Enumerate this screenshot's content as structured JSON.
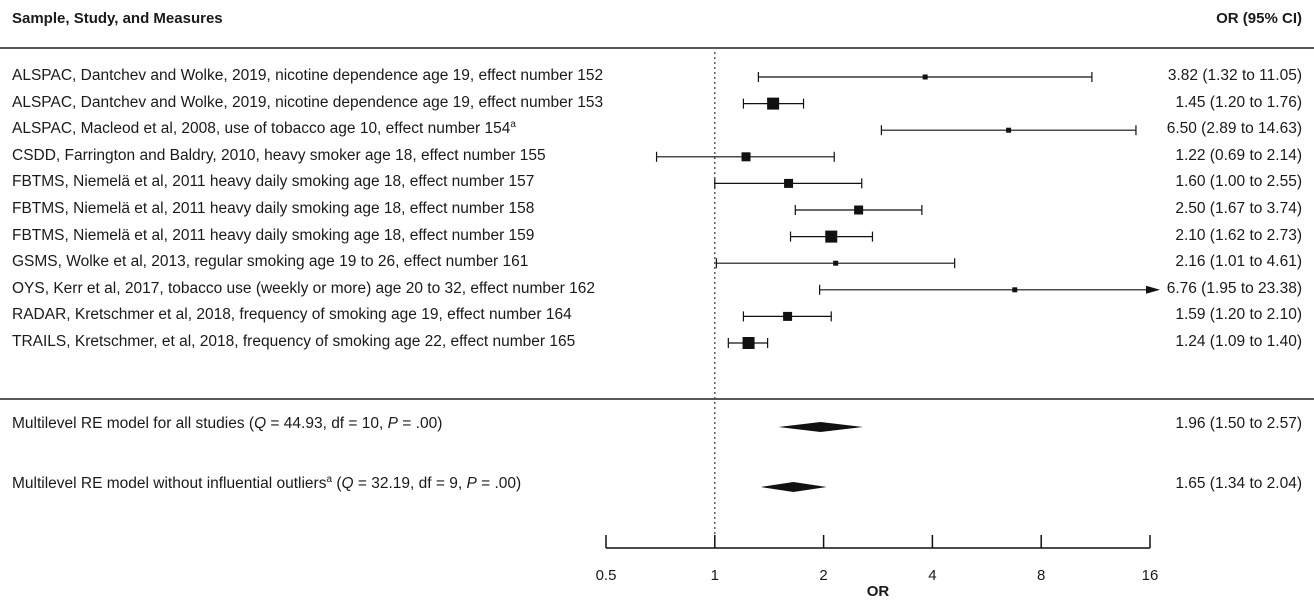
{
  "headers": {
    "left": "Sample, Study, and Measures",
    "right": "OR (95% CI)"
  },
  "chart_data": {
    "type": "forest",
    "xlabel": "OR",
    "x_scale": "log2",
    "xlim": [
      0.5,
      16
    ],
    "xticks": [
      0.5,
      1,
      2,
      4,
      8,
      16
    ],
    "tick_labels": [
      "0.5",
      "1",
      "2",
      "4",
      "8",
      "16"
    ],
    "reference_line": 1,
    "studies": [
      {
        "label": "ALSPAC, Dantchev and Wolke, 2019, nicotine dependence age 19, effect number 152",
        "note": "",
        "ci_text": "3.82 (1.32 to 11.05)",
        "or": 3.82,
        "lo": 1.32,
        "hi": 11.05,
        "weight": "small"
      },
      {
        "label": "ALSPAC, Dantchev and Wolke, 2019, nicotine dependence age 19, effect number 153",
        "note": "",
        "ci_text": "1.45 (1.20 to 1.76)",
        "or": 1.45,
        "lo": 1.2,
        "hi": 1.76,
        "weight": "large"
      },
      {
        "label": "ALSPAC, Macleod et al, 2008, use of tobacco age 10, effect number 154",
        "note": "a",
        "ci_text": "6.50 (2.89 to 14.63)",
        "or": 6.5,
        "lo": 2.89,
        "hi": 14.63,
        "weight": "small"
      },
      {
        "label": "CSDD, Farrington and Baldry, 2010, heavy smoker age 18, effect number 155",
        "note": "",
        "ci_text": "1.22 (0.69 to 2.14)",
        "or": 1.22,
        "lo": 0.69,
        "hi": 2.14,
        "weight": "medium"
      },
      {
        "label": "FBTMS, Niemelä et al, 2011 heavy daily smoking age 18, effect number 157",
        "note": "",
        "ci_text": "1.60 (1.00 to 2.55)",
        "or": 1.6,
        "lo": 1.0,
        "hi": 2.55,
        "weight": "medium"
      },
      {
        "label": "FBTMS, Niemelä et al, 2011 heavy daily smoking age 18, effect number 158",
        "note": "",
        "ci_text": "2.50 (1.67 to 3.74)",
        "or": 2.5,
        "lo": 1.67,
        "hi": 3.74,
        "weight": "medium"
      },
      {
        "label": "FBTMS, Niemelä et al, 2011 heavy daily smoking age 18, effect number 159",
        "note": "",
        "ci_text": "2.10 (1.62 to 2.73)",
        "or": 2.1,
        "lo": 1.62,
        "hi": 2.73,
        "weight": "large"
      },
      {
        "label": "GSMS, Wolke et al, 2013, regular smoking age 19 to 26, effect number 161",
        "note": "",
        "ci_text": "2.16 (1.01 to 4.61)",
        "or": 2.16,
        "lo": 1.01,
        "hi": 4.61,
        "weight": "small"
      },
      {
        "label": "OYS, Kerr et al, 2017, tobacco use (weekly or more) age 20 to 32, effect number 162",
        "note": "",
        "ci_text": "6.76 (1.95 to 23.38)",
        "or": 6.76,
        "lo": 1.95,
        "hi": 23.38,
        "weight": "small"
      },
      {
        "label": "RADAR, Kretschmer et al, 2018, frequency of smoking age 19, effect number 164",
        "note": "",
        "ci_text": "1.59 (1.20 to 2.10)",
        "or": 1.59,
        "lo": 1.2,
        "hi": 2.1,
        "weight": "medium"
      },
      {
        "label": "TRAILS, Kretschmer, et al, 2018, frequency of smoking age 22, effect number 165",
        "note": "",
        "ci_text": "1.24 (1.09 to 1.40)",
        "or": 1.24,
        "lo": 1.09,
        "hi": 1.4,
        "weight": "large"
      }
    ],
    "summaries": [
      {
        "label_pre": "Multilevel RE model for all studies (",
        "note": "",
        "stat_text": "= 44.93, df = 10, ",
        "p_text": "= .00)",
        "ci_text": "1.96 (1.50 to 2.57)",
        "or": 1.96,
        "lo": 1.5,
        "hi": 2.57
      },
      {
        "label_pre": "Multilevel RE model without influential outliers",
        "note": "a",
        "stat_text": "= 32.19, df = 9, ",
        "p_text": "= .00)",
        "ci_text": "1.65 (1.34 to 2.04)",
        "or": 1.65,
        "lo": 1.34,
        "hi": 2.04
      }
    ],
    "summary_symbols": {
      "q": "Q",
      "p": "P",
      "open_paren": " ("
    }
  }
}
